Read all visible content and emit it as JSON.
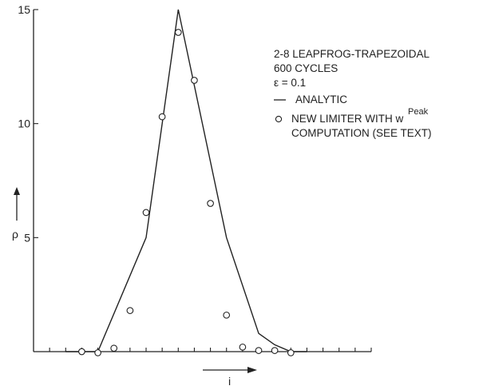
{
  "chart_data": {
    "type": "line",
    "xlim": [
      1,
      22
    ],
    "ylim": [
      0,
      15
    ],
    "y_ticks": [
      5,
      10,
      15
    ],
    "ylabel": "ρ",
    "xlabel": "i",
    "series": [
      {
        "name": "ANALYTIC",
        "style": "line",
        "x": [
          3,
          5,
          8,
          10,
          13,
          15,
          16,
          17,
          18
        ],
        "y": [
          0,
          0,
          5,
          15,
          5,
          0.8,
          0.3,
          0,
          0
        ]
      },
      {
        "name": "NEW LIMITER WITH w Peak COMPUTATION (SEE TEXT)",
        "style": "circle",
        "x": [
          4,
          5,
          6,
          7,
          8,
          9,
          10,
          11,
          12,
          13,
          14,
          15,
          16,
          17
        ],
        "y": [
          0,
          -0.05,
          0.15,
          1.8,
          6.1,
          10.3,
          14,
          11.9,
          6.5,
          1.6,
          0.2,
          0.05,
          0.05,
          -0.05
        ]
      }
    ],
    "annotations": {
      "line1": "2-8 LEAPFROG-TRAPEZOIDAL",
      "line2": "600 CYCLES",
      "line3": "ε = 0.1",
      "legend_line": "ANALYTIC",
      "legend_pts_1": "NEW LIMITER WITH w",
      "legend_pts_sup": "Peak",
      "legend_pts_2": "COMPUTATION (SEE TEXT)"
    }
  }
}
